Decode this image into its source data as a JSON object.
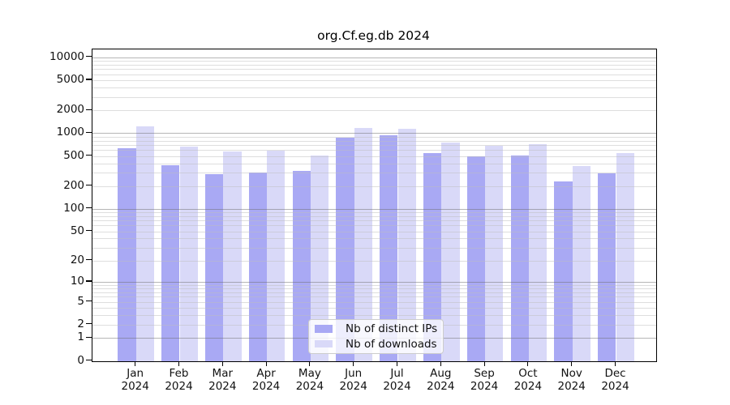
{
  "title": "org.Cf.eg.db 2024",
  "colors": {
    "bar_ips": "#a9a9f4",
    "bar_downloads": "#d9d9f8",
    "grid_major": "rgba(110,110,110,0.5)",
    "grid_minor": "rgba(190,190,190,0.5)",
    "axis": "#000000",
    "legend_border": "#cccccc",
    "background": "#ffffff"
  },
  "chart_data": {
    "type": "bar",
    "title": "org.Cf.eg.db 2024",
    "categories": [
      "Jan 2024",
      "Feb 2024",
      "Mar 2024",
      "Apr 2024",
      "May 2024",
      "Jun 2024",
      "Jul 2024",
      "Aug 2024",
      "Sep 2024",
      "Oct 2024",
      "Nov 2024",
      "Dec 2024"
    ],
    "series": [
      {
        "name": "Nb of distinct IPs",
        "values": [
          640,
          380,
          285,
          300,
          320,
          880,
          930,
          540,
          500,
          510,
          230,
          295
        ]
      },
      {
        "name": "Nb of downloads",
        "values": [
          1230,
          665,
          580,
          590,
          505,
          1160,
          1150,
          750,
          680,
          720,
          370,
          550
        ]
      }
    ],
    "xlabel": "",
    "ylabel": "",
    "yscale": "log10(value+1)",
    "ylim": [
      0,
      15000
    ],
    "y_ticks": [
      10000,
      5000,
      2000,
      1000,
      500,
      200,
      100,
      50,
      20,
      10,
      5,
      2,
      1,
      0
    ],
    "grid": true,
    "grid_over_bars": true,
    "legend_position": "bottom-center"
  }
}
